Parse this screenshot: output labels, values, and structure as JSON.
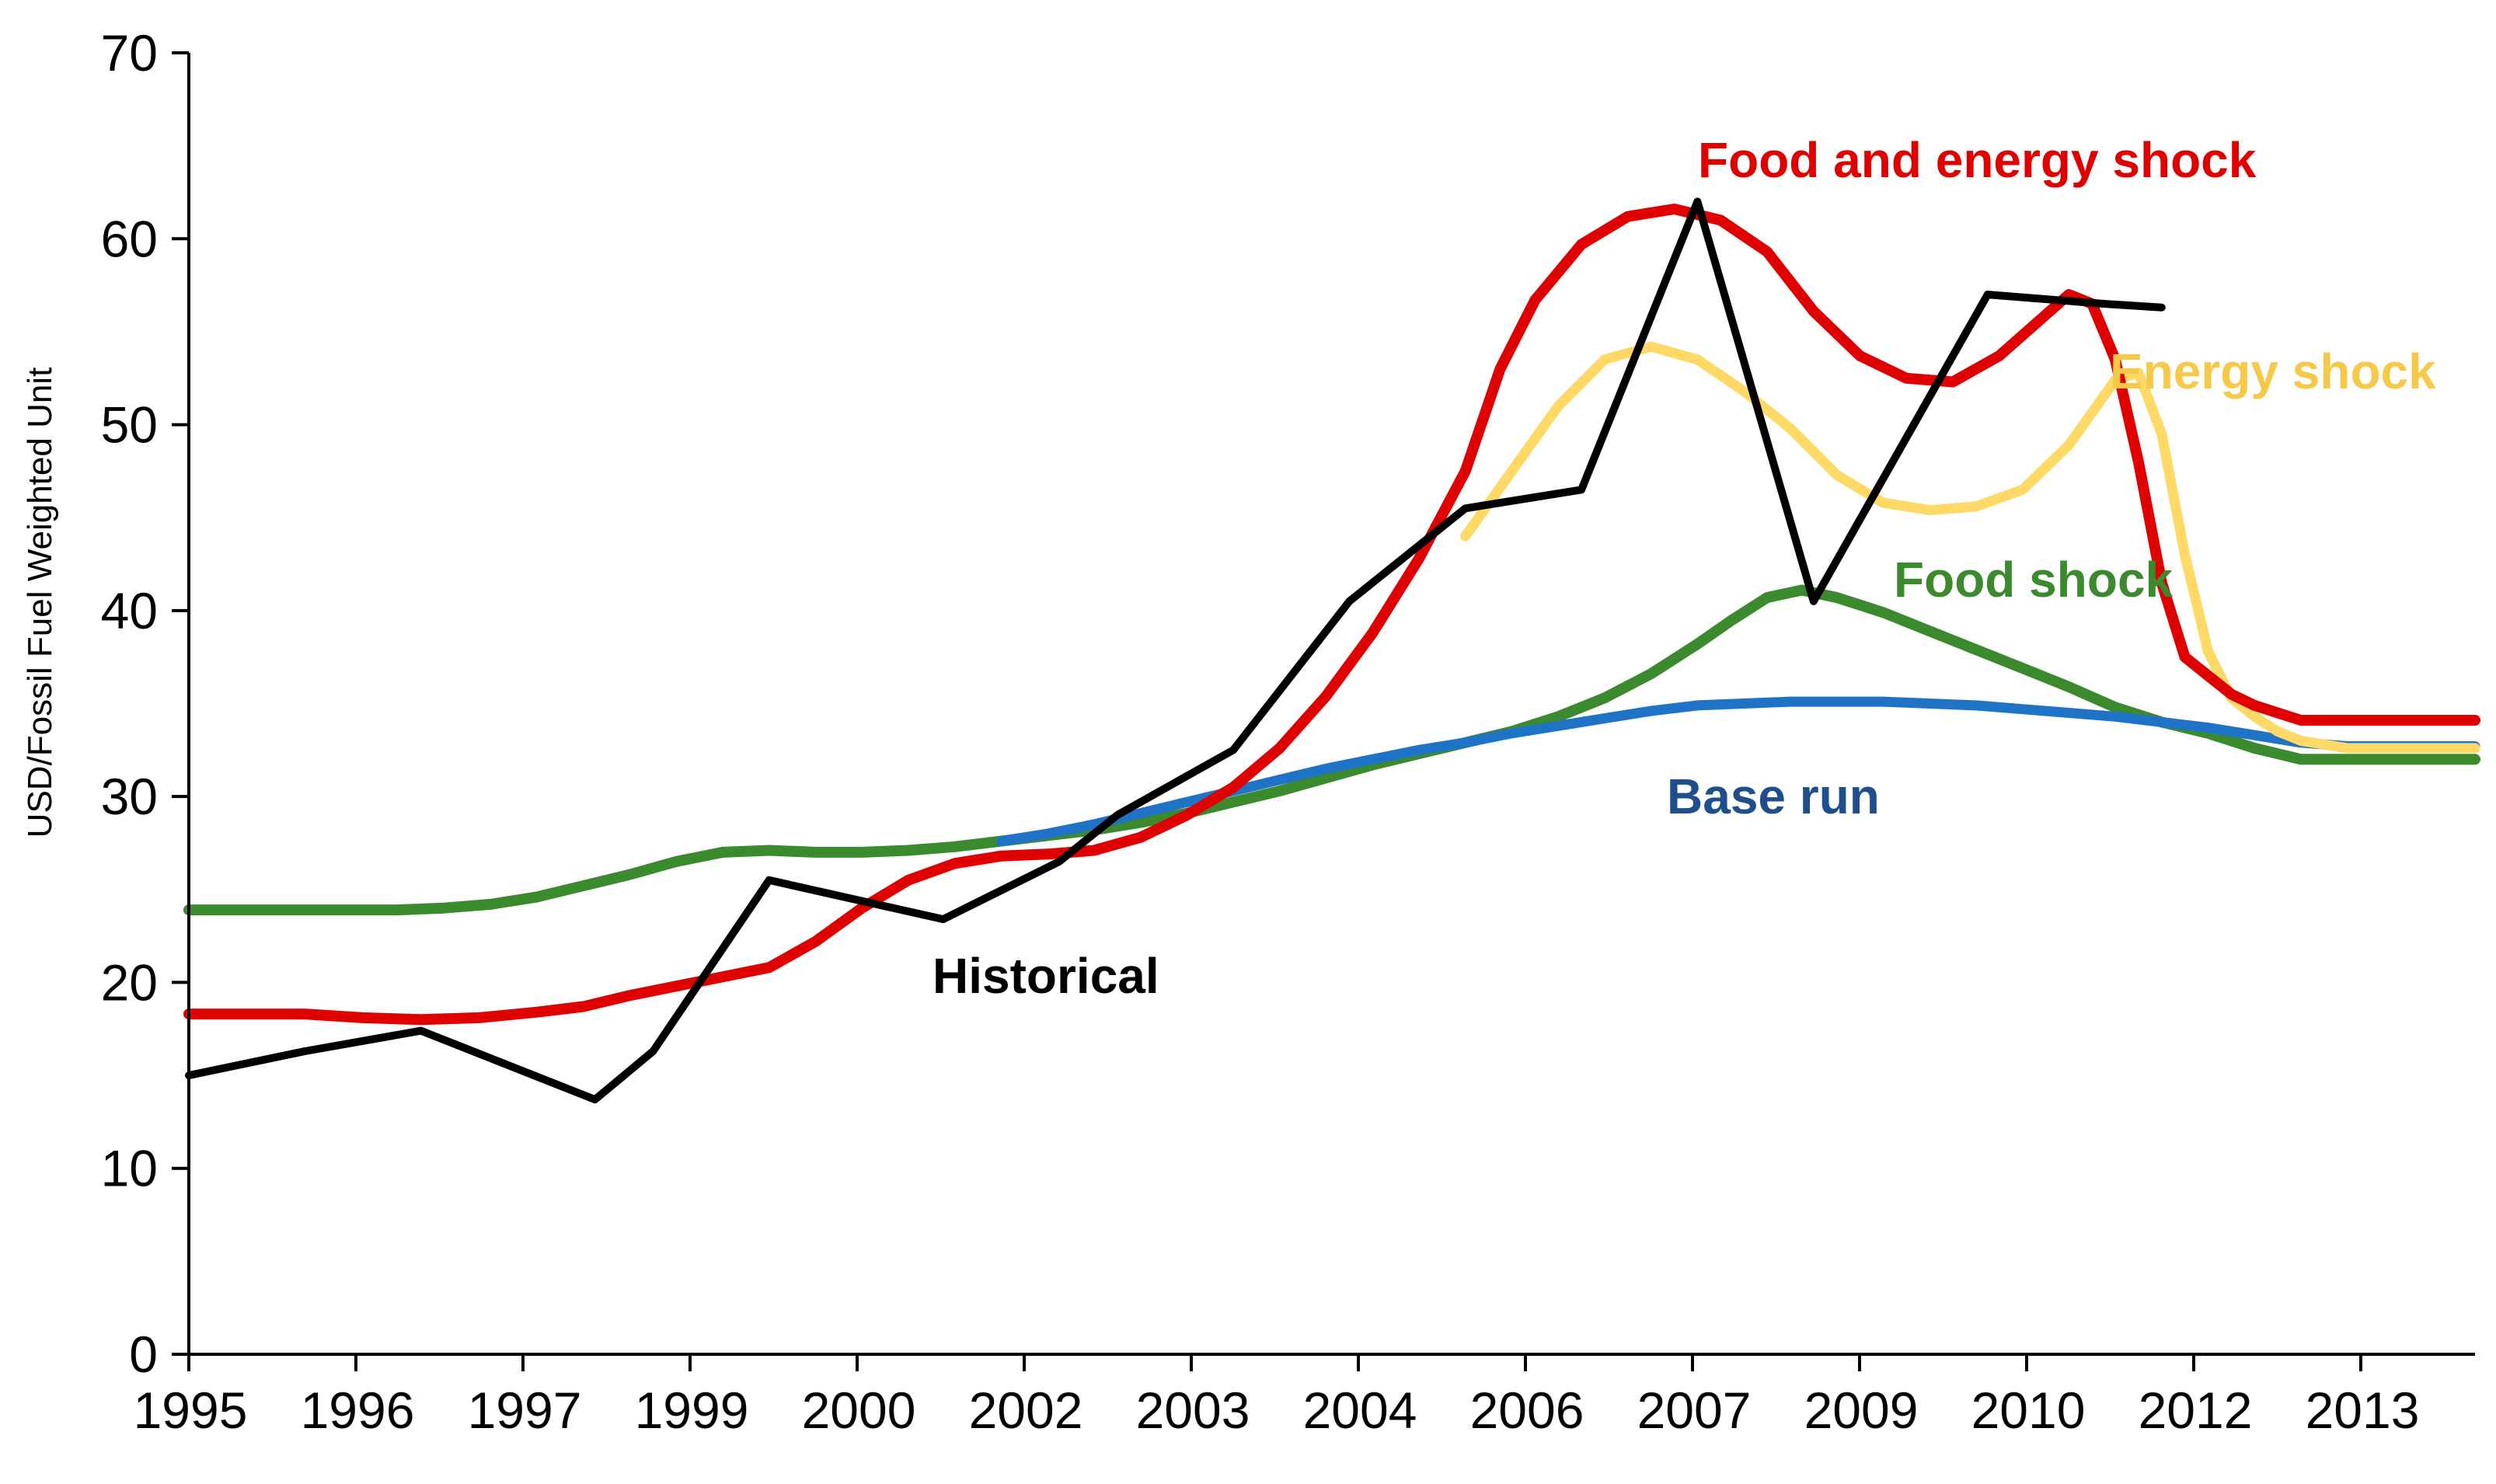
{
  "chart_data": {
    "type": "line",
    "title": "",
    "xlabel": "",
    "ylabel": "USD/Fossil Fuel Weighted Unit",
    "ylim": [
      0,
      70
    ],
    "xlim": [
      1995.0,
      2014.7
    ],
    "grid": false,
    "yticks": [
      0,
      10,
      20,
      30,
      40,
      50,
      60,
      70
    ],
    "xtick_labels": [
      "1995",
      "1996",
      "1997",
      "1999",
      "2000",
      "2002",
      "2003",
      "2004",
      "2006",
      "2007",
      "2009",
      "2010",
      "2012",
      "2013"
    ],
    "series": [
      {
        "name": "Food shock",
        "label": "Food shock",
        "color": "#3b8a2e",
        "x": [
          1995.0,
          1995.5,
          1996.0,
          1996.4,
          1996.8,
          1997.2,
          1997.6,
          1998.0,
          1998.4,
          1998.8,
          1999.2,
          1999.6,
          2000.0,
          2000.4,
          2000.8,
          2001.2,
          2001.6,
          2002.0,
          2002.4,
          2002.8,
          2003.2,
          2003.6,
          2004.0,
          2004.4,
          2004.8,
          2005.2,
          2005.6,
          2006.0,
          2006.4,
          2006.8,
          2007.2,
          2007.6,
          2008.0,
          2008.3,
          2008.6,
          2008.9,
          2009.2,
          2009.6,
          2010.0,
          2010.4,
          2010.8,
          2011.2,
          2011.6,
          2012.0,
          2012.4,
          2012.8,
          2013.2,
          2013.6,
          2014.0,
          2014.4,
          2014.7
        ],
        "values": [
          23.9,
          23.9,
          23.9,
          23.9,
          23.9,
          24.0,
          24.2,
          24.6,
          25.2,
          25.8,
          26.5,
          27.0,
          27.1,
          27.0,
          27.0,
          27.1,
          27.3,
          27.6,
          27.9,
          28.2,
          28.6,
          29.1,
          29.7,
          30.3,
          31.0,
          31.7,
          32.3,
          32.9,
          33.5,
          34.3,
          35.3,
          36.6,
          38.2,
          39.5,
          40.7,
          41.1,
          40.7,
          39.9,
          38.9,
          37.9,
          36.9,
          35.9,
          34.8,
          34.0,
          33.4,
          32.6,
          32.0,
          32.0,
          32.0,
          32.0,
          32.0
        ]
      },
      {
        "name": "Base run",
        "label": "Base run",
        "color": "#1f73c7",
        "label_color": "#1f4e8c",
        "x": [
          2002.0,
          2002.4,
          2002.8,
          2003.2,
          2003.6,
          2004.0,
          2004.4,
          2004.8,
          2005.2,
          2005.6,
          2006.0,
          2006.4,
          2006.8,
          2007.2,
          2007.6,
          2008.0,
          2008.4,
          2008.8,
          2009.2,
          2009.6,
          2010.0,
          2010.4,
          2010.8,
          2011.2,
          2011.6,
          2012.0,
          2012.4,
          2012.8,
          2013.2,
          2013.6,
          2014.0,
          2014.4,
          2014.7
        ],
        "values": [
          27.6,
          28.0,
          28.5,
          29.1,
          29.7,
          30.3,
          30.9,
          31.5,
          32.0,
          32.5,
          32.9,
          33.4,
          33.8,
          34.2,
          34.6,
          34.9,
          35.0,
          35.1,
          35.1,
          35.1,
          35.0,
          34.9,
          34.7,
          34.5,
          34.3,
          34.0,
          33.7,
          33.3,
          32.9,
          32.7,
          32.7,
          32.7,
          32.7
        ]
      },
      {
        "name": "Energy shock",
        "label": "Energy shock",
        "color": "#ffd966",
        "label_color": "#f7c948",
        "x": [
          2006.0,
          2006.4,
          2006.8,
          2007.2,
          2007.6,
          2008.0,
          2008.4,
          2008.8,
          2009.2,
          2009.6,
          2010.0,
          2010.4,
          2010.8,
          2011.2,
          2011.6,
          2011.8,
          2012.0,
          2012.2,
          2012.4,
          2012.6,
          2012.8,
          2013.0,
          2013.2,
          2013.6,
          2014.0,
          2014.4,
          2014.7
        ],
        "values": [
          44.0,
          47.5,
          51.0,
          53.5,
          54.2,
          53.5,
          51.8,
          49.8,
          47.3,
          45.8,
          45.4,
          45.6,
          46.5,
          48.9,
          52.4,
          52.8,
          49.5,
          43.0,
          37.8,
          35.3,
          34.3,
          33.5,
          33.0,
          32.6,
          32.6,
          32.6,
          32.6
        ]
      },
      {
        "name": "Food and energy shock",
        "label": "Food and energy shock",
        "color": "#e00000",
        "x": [
          1995.0,
          1995.5,
          1996.0,
          1996.5,
          1997.0,
          1997.5,
          1998.0,
          1998.4,
          1998.8,
          1999.2,
          1999.6,
          2000.0,
          2000.4,
          2000.8,
          2001.2,
          2001.6,
          2002.0,
          2002.4,
          2002.8,
          2003.2,
          2003.6,
          2004.0,
          2004.4,
          2004.8,
          2005.2,
          2005.6,
          2006.0,
          2006.3,
          2006.6,
          2007.0,
          2007.4,
          2007.8,
          2008.2,
          2008.6,
          2009.0,
          2009.4,
          2009.8,
          2010.2,
          2010.6,
          2011.0,
          2011.2,
          2011.4,
          2011.6,
          2011.8,
          2012.0,
          2012.2,
          2012.4,
          2012.6,
          2012.8,
          2013.0,
          2013.2,
          2013.6,
          2014.0,
          2014.4,
          2014.7
        ],
        "values": [
          18.3,
          18.3,
          18.3,
          18.1,
          18.0,
          18.1,
          18.4,
          18.7,
          19.3,
          19.8,
          20.3,
          20.8,
          22.2,
          24.0,
          25.5,
          26.4,
          26.8,
          26.9,
          27.1,
          27.8,
          29.0,
          30.5,
          32.6,
          35.4,
          38.8,
          42.8,
          47.5,
          53.0,
          56.7,
          59.7,
          61.2,
          61.6,
          61.0,
          59.3,
          56.1,
          53.7,
          52.5,
          52.3,
          53.7,
          55.9,
          57.0,
          56.5,
          53.5,
          48.0,
          41.5,
          37.5,
          36.5,
          35.5,
          34.9,
          34.5,
          34.1,
          34.1,
          34.1,
          34.1,
          34.1
        ]
      },
      {
        "name": "Historical",
        "label": "Historical",
        "color": "#000000",
        "x": [
          1995.0,
          1996.0,
          1997.0,
          1998.5,
          1999.0,
          2000.0,
          2001.5,
          2002.5,
          2003.0,
          2004.0,
          2005.0,
          2006.0,
          2007.0,
          2008.0,
          2009.0,
          2009.5,
          2010.5,
          2011.5,
          2012.0
        ],
        "values": [
          15.0,
          16.3,
          17.4,
          13.7,
          16.3,
          25.5,
          23.4,
          26.5,
          29.0,
          32.5,
          40.5,
          45.5,
          46.5,
          62.0,
          40.5,
          46.0,
          57.0,
          56.5,
          56.3
        ]
      }
    ]
  }
}
